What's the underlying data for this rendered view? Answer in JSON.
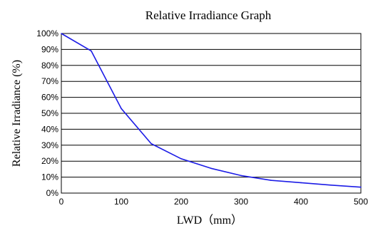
{
  "chart_data": {
    "type": "line",
    "title": "Relative Irradiance Graph",
    "xlabel": "LWD（mm）",
    "ylabel": "Relative Irradiance (%)",
    "xlim": [
      0,
      500
    ],
    "ylim": [
      0,
      100
    ],
    "x_ticks": [
      "0",
      "100",
      "200",
      "300",
      "400",
      "500"
    ],
    "y_ticks": [
      "0%",
      "10%",
      "20%",
      "30%",
      "40%",
      "50%",
      "60%",
      "70%",
      "80%",
      "90%",
      "100%"
    ],
    "x_tick_values": [
      0,
      100,
      200,
      300,
      400,
      500
    ],
    "y_tick_values": [
      0,
      10,
      20,
      30,
      40,
      50,
      60,
      70,
      80,
      90,
      100
    ],
    "grid": "horizontal",
    "series": [
      {
        "color": "#1c1ce6",
        "x": [
          0,
          50,
          100,
          150,
          200,
          250,
          300,
          350,
          400,
          450,
          500
        ],
        "y": [
          100,
          89,
          53,
          31,
          21.5,
          15.5,
          11,
          8,
          6.5,
          5,
          3.7
        ]
      }
    ],
    "colors": {
      "line": "#1c1ce6",
      "grid": "#000000",
      "axis": "#000000"
    }
  }
}
